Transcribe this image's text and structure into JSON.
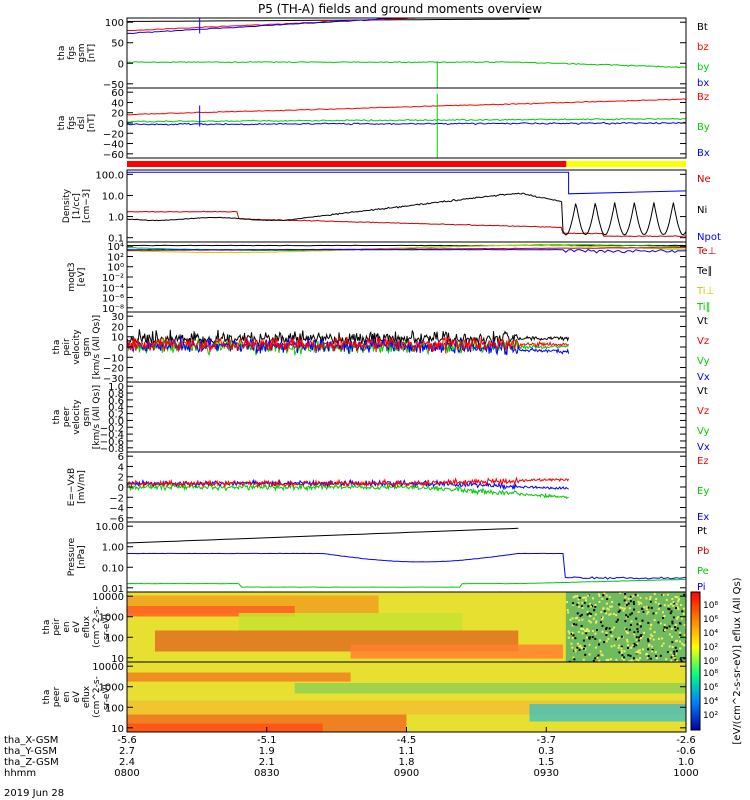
{
  "chart_data": {
    "type": "line",
    "title": "P5 (TH-A) fields and ground moments overview",
    "date_label": "2019 Jun 28",
    "x_axis": {
      "row_labels": [
        "tha_X-GSM",
        "tha_Y-GSM",
        "tha_Z-GSM",
        "hhmm"
      ],
      "columns": [
        {
          "X": "-5.6",
          "Y": "2.7",
          "Z": "2.4",
          "hhmm": "0800"
        },
        {
          "X": "-5.1",
          "Y": "1.9",
          "Z": "2.1",
          "hhmm": "0830"
        },
        {
          "X": "-4.5",
          "Y": "1.1",
          "Z": "1.8",
          "hhmm": "0900"
        },
        {
          "X": "-3.7",
          "Y": "0.3",
          "Z": "1.5",
          "hhmm": "0930"
        },
        {
          "X": "-2.6",
          "Y": "-0.6",
          "Z": "1.0",
          "hhmm": "1000"
        }
      ]
    },
    "panels": [
      {
        "id": "fgs-gsm",
        "ylabel": [
          "tha",
          "fgs",
          "gsm",
          "[nT]"
        ],
        "ticks": [
          "100",
          "50",
          "0",
          "−50"
        ],
        "series": [
          {
            "name": "Bt",
            "color": "#000000"
          },
          {
            "name": "bz",
            "color": "#ff0000"
          },
          {
            "name": "by",
            "color": "#00cc00"
          },
          {
            "name": "bx",
            "color": "#0000ff"
          }
        ]
      },
      {
        "id": "fgs-dsl",
        "ylabel": [
          "tha",
          "fgs",
          "dsl",
          "[nT]"
        ],
        "ticks": [
          "60",
          "40",
          "20",
          "0",
          "−20",
          "−40",
          "−60"
        ],
        "series": [
          {
            "name": "Bz",
            "color": "#ff0000"
          },
          {
            "name": "By",
            "color": "#00cc00"
          },
          {
            "name": "Bx",
            "color": "#0000ff"
          }
        ]
      },
      {
        "id": "density",
        "ylabel": [
          "Density",
          "[1/cc]",
          "[cm−3]"
        ],
        "ticks": [
          "100.0",
          "10.0",
          "1.0",
          "0.1"
        ],
        "series": [
          {
            "name": "Ne",
            "color": "#cc0000"
          },
          {
            "name": "Ni",
            "color": "#000000"
          },
          {
            "name": "Npot",
            "color": "#0000ff"
          }
        ]
      },
      {
        "id": "temperature",
        "ylabel": [
          "moqt3",
          "[eV]"
        ],
        "ticks": [
          "10⁴",
          "10²",
          "10⁰",
          "10⁻²",
          "10⁻⁴",
          "10⁻⁶",
          "10⁻⁸"
        ],
        "series": [
          {
            "name": "Te⊥",
            "color": "#cc0000"
          },
          {
            "name": "Te∥",
            "color": "#000000"
          },
          {
            "name": "Ti⊥",
            "color": "#cccc00"
          },
          {
            "name": "Ti∥",
            "color": "#00cc00"
          }
        ]
      },
      {
        "id": "peir-velocity",
        "ylabel": [
          "tha",
          "peir",
          "velocity",
          "gsm",
          "[km/s (All Qs)]"
        ],
        "ticks": [
          "30",
          "20",
          "10",
          "0",
          "−10",
          "−20",
          "−30"
        ],
        "series": [
          {
            "name": "Vt",
            "color": "#000000"
          },
          {
            "name": "Vz",
            "color": "#ff0000"
          },
          {
            "name": "Vy",
            "color": "#00cc00"
          },
          {
            "name": "Vx",
            "color": "#0000ff"
          }
        ]
      },
      {
        "id": "peer-velocity",
        "ylabel": [
          "tha",
          "peer",
          "velocity",
          "gsm",
          "[km/s (All Qs)]"
        ],
        "ticks": [
          "1.0",
          "0.8",
          "0.6",
          "0.4",
          "0.2",
          "0.0",
          "−0.2",
          "−0.4",
          "−0.6",
          "−0.8"
        ],
        "series": [
          {
            "name": "Vt",
            "color": "#000000"
          },
          {
            "name": "Vz",
            "color": "#ff0000"
          },
          {
            "name": "Vy",
            "color": "#00cc00"
          },
          {
            "name": "Vx",
            "color": "#0000ff"
          }
        ]
      },
      {
        "id": "efield",
        "ylabel": [
          "E=−VxB",
          "[mV/m]"
        ],
        "ticks": [
          "6",
          "4",
          "2",
          "0",
          "−2",
          "−4",
          "−6"
        ],
        "series": [
          {
            "name": "Ez",
            "color": "#ff0000"
          },
          {
            "name": "Ey",
            "color": "#00cc00"
          },
          {
            "name": "Ex",
            "color": "#0000ff"
          }
        ]
      },
      {
        "id": "pressure",
        "ylabel": [
          "Pressure",
          "[nPa]"
        ],
        "ticks": [
          "10.00",
          "1.00",
          "0.10",
          "0.01"
        ],
        "series": [
          {
            "name": "Pt",
            "color": "#000000"
          },
          {
            "name": "Pb",
            "color": "#cc0000"
          },
          {
            "name": "Pe",
            "color": "#00cc00"
          },
          {
            "name": "Pi",
            "color": "#0000ff"
          }
        ]
      },
      {
        "id": "peir-spectrogram",
        "ylabel": [
          "tha",
          "peir",
          "en",
          "eV",
          "eflux",
          "(cm^2-s-",
          "sr-eV)"
        ],
        "ticks": [
          "10000",
          "1000",
          "100",
          "10"
        ]
      },
      {
        "id": "peer-spectrogram",
        "ylabel": [
          "tha",
          "peer",
          "en",
          "eV",
          "eflux",
          "(cm^2-s-",
          "sr-eV)"
        ],
        "ticks": [
          "10000",
          "1000",
          "100",
          "10"
        ]
      }
    ],
    "colorbar": {
      "label": "[eV/(cm^2-s-sr-eV)] eflux (All Qs)",
      "ticks_upper": [
        "10⁸",
        "10⁶",
        "10⁴",
        "10²",
        "10⁰"
      ],
      "ticks_lower": [
        "10⁸",
        "10⁶",
        "10⁴",
        "10²"
      ]
    },
    "mode_bar": {
      "colors": [
        "#ff0000",
        "#ffff00"
      ]
    }
  }
}
